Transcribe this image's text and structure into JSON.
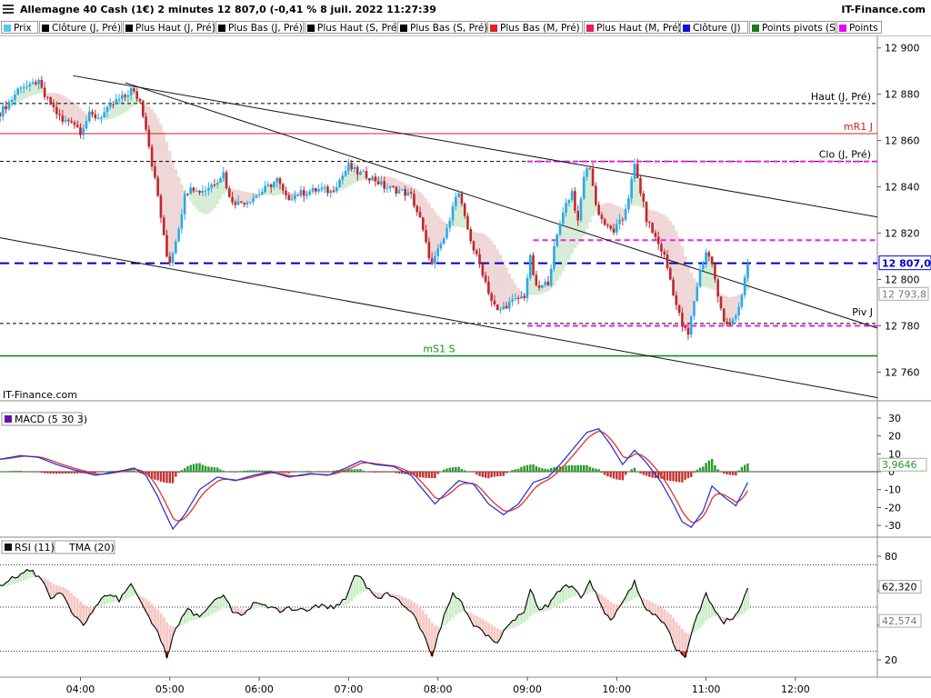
{
  "header": {
    "title": "Allemagne 40 Cash (1€) 2 minutes 12 807,0 (-0,41 % 8 juil. 2022 11:27:39",
    "brand": "IT-Finance.com"
  },
  "legend": [
    {
      "label": "Prix",
      "color": "#55c8e8"
    },
    {
      "label": "Clôture (J, Pré)",
      "color": "#000000"
    },
    {
      "label": "Plus Haut (J, Pré)",
      "color": "#000000"
    },
    {
      "label": "Plus Bas (J, Pré)",
      "color": "#000000"
    },
    {
      "label": "Plus Haut (S, Pré)",
      "color": "#000000"
    },
    {
      "label": "Plus Bas (S, Pré)",
      "color": "#000000"
    },
    {
      "label": "Plus Bas (M, Pré)",
      "color": "#e02020"
    },
    {
      "label": "Plus Haut (M, Pré)",
      "color": "#e02050"
    },
    {
      "label": "Clôture (J)",
      "color": "#1010e0"
    },
    {
      "label": "Points pivots (S)",
      "color": "#1a7a1a"
    },
    {
      "label": "Points",
      "color": "#ee00ee"
    }
  ],
  "watermark": "IT-Finance.com",
  "colors": {
    "up": "#2aa9e8",
    "down": "#c0282e",
    "close_line": "#0000cc",
    "pivot_green": "#1a8a1a",
    "magenta": "#ee22ee",
    "red_line": "#d02020"
  },
  "chart_data": [
    {
      "type": "candlestick",
      "panel": "price",
      "ylim": [
        12748,
        12905
      ],
      "y_ticks": [
        12900,
        12880,
        12860,
        12840,
        12820,
        12800,
        12780,
        12760
      ],
      "y_tick_labels": [
        "12 900",
        "12 880",
        "12 860",
        "12 840",
        "12 820",
        "12 800",
        "12 780",
        "12 760"
      ],
      "x_ticks": [
        "04:00",
        "05:00",
        "06:00",
        "07:00",
        "08:00",
        "09:00",
        "10:00",
        "11:00",
        "12:00"
      ],
      "x_tick_times": [
        "04:00",
        "05:00",
        "06:00",
        "07:00",
        "08:00",
        "09:00",
        "10:00",
        "11:00",
        "12:00"
      ],
      "x_range": [
        "03:06",
        "12:55"
      ],
      "close_path": [
        [
          "03:06",
          12872
        ],
        [
          "03:14",
          12878
        ],
        [
          "03:20",
          12884
        ],
        [
          "03:26",
          12883
        ],
        [
          "03:31",
          12886
        ],
        [
          "03:36",
          12879
        ],
        [
          "03:42",
          12874
        ],
        [
          "03:48",
          12868
        ],
        [
          "03:54",
          12869
        ],
        [
          "04:00",
          12864
        ],
        [
          "04:06",
          12871
        ],
        [
          "04:12",
          12870
        ],
        [
          "04:18",
          12873
        ],
        [
          "04:24",
          12877
        ],
        [
          "04:30",
          12879
        ],
        [
          "04:34",
          12882
        ],
        [
          "04:40",
          12877
        ],
        [
          "04:44",
          12866
        ],
        [
          "04:48",
          12850
        ],
        [
          "04:52",
          12836
        ],
        [
          "04:56",
          12818
        ],
        [
          "04:59",
          12806
        ],
        [
          "05:02",
          12812
        ],
        [
          "05:06",
          12823
        ],
        [
          "05:10",
          12836
        ],
        [
          "05:14",
          12841
        ],
        [
          "05:18",
          12838
        ],
        [
          "05:24",
          12839
        ],
        [
          "05:30",
          12842
        ],
        [
          "05:36",
          12846
        ],
        [
          "05:40",
          12835
        ],
        [
          "05:46",
          12833
        ],
        [
          "05:52",
          12834
        ],
        [
          "06:00",
          12837
        ],
        [
          "06:06",
          12840
        ],
        [
          "06:12",
          12843
        ],
        [
          "06:18",
          12835
        ],
        [
          "06:26",
          12837
        ],
        [
          "06:34",
          12838
        ],
        [
          "06:42",
          12839
        ],
        [
          "06:48",
          12838
        ],
        [
          "06:54",
          12843
        ],
        [
          "07:00",
          12849
        ],
        [
          "07:06",
          12846
        ],
        [
          "07:12",
          12845
        ],
        [
          "07:18",
          12843
        ],
        [
          "07:24",
          12840
        ],
        [
          "07:30",
          12839
        ],
        [
          "07:36",
          12838
        ],
        [
          "07:42",
          12836
        ],
        [
          "07:48",
          12826
        ],
        [
          "07:52",
          12815
        ],
        [
          "07:56",
          12806
        ],
        [
          "08:00",
          12812
        ],
        [
          "08:06",
          12821
        ],
        [
          "08:10",
          12833
        ],
        [
          "08:14",
          12837
        ],
        [
          "08:18",
          12826
        ],
        [
          "08:24",
          12813
        ],
        [
          "08:30",
          12803
        ],
        [
          "08:36",
          12791
        ],
        [
          "08:40",
          12786
        ],
        [
          "08:46",
          12789
        ],
        [
          "08:52",
          12791
        ],
        [
          "08:58",
          12793
        ],
        [
          "09:02",
          12809
        ],
        [
          "09:06",
          12796
        ],
        [
          "09:10",
          12797
        ],
        [
          "09:14",
          12799
        ],
        [
          "09:18",
          12813
        ],
        [
          "09:24",
          12830
        ],
        [
          "09:30",
          12838
        ],
        [
          "09:34",
          12824
        ],
        [
          "09:38",
          12845
        ],
        [
          "09:42",
          12849
        ],
        [
          "09:46",
          12832
        ],
        [
          "09:50",
          12826
        ],
        [
          "09:54",
          12822
        ],
        [
          "09:58",
          12821
        ],
        [
          "10:04",
          12826
        ],
        [
          "10:08",
          12836
        ],
        [
          "10:12",
          12849
        ],
        [
          "10:16",
          12838
        ],
        [
          "10:20",
          12826
        ],
        [
          "10:26",
          12818
        ],
        [
          "10:32",
          12810
        ],
        [
          "10:36",
          12800
        ],
        [
          "10:40",
          12789
        ],
        [
          "10:44",
          12780
        ],
        [
          "10:48",
          12776
        ],
        [
          "10:52",
          12791
        ],
        [
          "10:56",
          12804
        ],
        [
          "11:00",
          12812
        ],
        [
          "11:04",
          12807
        ],
        [
          "11:08",
          12792
        ],
        [
          "11:12",
          12783
        ],
        [
          "11:16",
          12781
        ],
        [
          "11:20",
          12783
        ],
        [
          "11:24",
          12793
        ],
        [
          "11:28",
          12807
        ]
      ],
      "h_lines": [
        {
          "name": "Haut (J, Pré)",
          "y": 12876,
          "style": "dash-black"
        },
        {
          "name": "mR1 J",
          "y": 12863,
          "style": "solid-red"
        },
        {
          "name": "Clo (J, Pré)",
          "y": 12851,
          "style": "dash-black"
        },
        {
          "name": "Piv J",
          "y": 12781,
          "style": "dash-black"
        },
        {
          "name": "mS1 S",
          "y": 12767,
          "style": "solid-green"
        },
        {
          "name": "Clôture (J)",
          "y": 12807,
          "style": "dash-blue"
        },
        {
          "name": "magenta-1",
          "y": 12851,
          "style": "dash-magenta",
          "from": "09:00"
        },
        {
          "name": "magenta-2",
          "y": 12817,
          "style": "dash-magenta",
          "from": "09:04"
        },
        {
          "name": "magenta-3",
          "y": 12780,
          "style": "dash-magenta",
          "from": "09:00"
        }
      ],
      "trend_lines": [
        {
          "from": [
            "03:55",
            12888
          ],
          "to": [
            "12:55",
            12827
          ]
        },
        {
          "from": [
            "04:30",
            12885
          ],
          "to": [
            "12:55",
            12779
          ]
        },
        {
          "from": [
            "03:06",
            12818
          ],
          "to": [
            "12:55",
            12749
          ]
        }
      ],
      "labels": [
        {
          "text": "Haut (J, Pré)",
          "y": 12876
        },
        {
          "text": "mR1 J",
          "y": 12863
        },
        {
          "text": "Clo (J, Pré)",
          "y": 12851
        },
        {
          "text": "Piv J",
          "y": 12783
        },
        {
          "text": "mS1 S",
          "y": 12767
        }
      ],
      "last_value": 12807.0,
      "last_value_label": "12 807,0",
      "secondary_value_label": "12 793,8",
      "secondary_value": 12793.8
    },
    {
      "type": "line",
      "panel": "macd",
      "title": "MACD (5 30 3)",
      "ylim": [
        -36,
        34
      ],
      "y_ticks": [
        30,
        20,
        10,
        0,
        -10,
        -20,
        -30
      ],
      "y_tick_labels": [
        "30",
        "20",
        "10",
        "0",
        "-10",
        "-20",
        "-30"
      ],
      "series_path": [
        [
          "03:06",
          7
        ],
        [
          "03:20",
          9
        ],
        [
          "03:32",
          8
        ],
        [
          "03:44",
          4
        ],
        [
          "03:56",
          1
        ],
        [
          "04:10",
          -2
        ],
        [
          "04:24",
          0
        ],
        [
          "04:36",
          2
        ],
        [
          "04:44",
          -2
        ],
        [
          "04:52",
          -14
        ],
        [
          "04:58",
          -25
        ],
        [
          "05:02",
          -32
        ],
        [
          "05:10",
          -24
        ],
        [
          "05:20",
          -10
        ],
        [
          "05:32",
          -3
        ],
        [
          "05:44",
          -5
        ],
        [
          "05:56",
          -2
        ],
        [
          "06:08",
          0
        ],
        [
          "06:20",
          -3
        ],
        [
          "06:34",
          -1
        ],
        [
          "06:46",
          -2
        ],
        [
          "06:58",
          2
        ],
        [
          "07:08",
          6
        ],
        [
          "07:18",
          4
        ],
        [
          "07:30",
          3
        ],
        [
          "07:42",
          -2
        ],
        [
          "07:52",
          -12
        ],
        [
          "07:58",
          -18
        ],
        [
          "08:04",
          -13
        ],
        [
          "08:14",
          -5
        ],
        [
          "08:24",
          -7
        ],
        [
          "08:34",
          -18
        ],
        [
          "08:44",
          -24
        ],
        [
          "08:54",
          -18
        ],
        [
          "09:04",
          -6
        ],
        [
          "09:14",
          -3
        ],
        [
          "09:22",
          4
        ],
        [
          "09:30",
          12
        ],
        [
          "09:40",
          22
        ],
        [
          "09:48",
          24
        ],
        [
          "09:56",
          15
        ],
        [
          "10:04",
          4
        ],
        [
          "10:12",
          12
        ],
        [
          "10:20",
          5
        ],
        [
          "10:30",
          -6
        ],
        [
          "10:38",
          -18
        ],
        [
          "10:44",
          -28
        ],
        [
          "10:50",
          -31
        ],
        [
          "10:58",
          -22
        ],
        [
          "11:04",
          -8
        ],
        [
          "11:12",
          -14
        ],
        [
          "11:20",
          -19
        ],
        [
          "11:28",
          -6
        ]
      ],
      "current_label": "3,9646",
      "current_value": 3.9646
    },
    {
      "type": "line",
      "panel": "rsi",
      "title": "RSI (11)",
      "title2": "TMA (20)",
      "ylim": [
        10,
        90
      ],
      "y_ticks": [
        80,
        60,
        40,
        20
      ],
      "y_tick_labels": [
        "80",
        "",
        "",
        "20"
      ],
      "series_path": [
        [
          "03:06",
          62
        ],
        [
          "03:16",
          68
        ],
        [
          "03:26",
          72
        ],
        [
          "03:34",
          66
        ],
        [
          "03:40",
          55
        ],
        [
          "03:46",
          60
        ],
        [
          "03:54",
          48
        ],
        [
          "04:02",
          40
        ],
        [
          "04:10",
          50
        ],
        [
          "04:18",
          58
        ],
        [
          "04:26",
          55
        ],
        [
          "04:34",
          64
        ],
        [
          "04:40",
          55
        ],
        [
          "04:46",
          45
        ],
        [
          "04:52",
          35
        ],
        [
          "04:58",
          22
        ],
        [
          "05:04",
          38
        ],
        [
          "05:12",
          50
        ],
        [
          "05:20",
          44
        ],
        [
          "05:28",
          52
        ],
        [
          "05:36",
          58
        ],
        [
          "05:42",
          48
        ],
        [
          "05:50",
          46
        ],
        [
          "05:58",
          54
        ],
        [
          "06:06",
          50
        ],
        [
          "06:14",
          48
        ],
        [
          "06:22",
          50
        ],
        [
          "06:32",
          49
        ],
        [
          "06:42",
          52
        ],
        [
          "06:50",
          50
        ],
        [
          "06:58",
          55
        ],
        [
          "07:04",
          70
        ],
        [
          "07:10",
          65
        ],
        [
          "07:18",
          56
        ],
        [
          "07:26",
          58
        ],
        [
          "07:34",
          54
        ],
        [
          "07:42",
          48
        ],
        [
          "07:50",
          35
        ],
        [
          "07:56",
          22
        ],
        [
          "08:02",
          40
        ],
        [
          "08:10",
          58
        ],
        [
          "08:16",
          52
        ],
        [
          "08:24",
          40
        ],
        [
          "08:32",
          34
        ],
        [
          "08:40",
          30
        ],
        [
          "08:48",
          42
        ],
        [
          "08:58",
          48
        ],
        [
          "09:02",
          62
        ],
        [
          "09:08",
          48
        ],
        [
          "09:14",
          52
        ],
        [
          "09:22",
          60
        ],
        [
          "09:30",
          64
        ],
        [
          "09:36",
          56
        ],
        [
          "09:42",
          66
        ],
        [
          "09:50",
          50
        ],
        [
          "09:56",
          42
        ],
        [
          "10:04",
          54
        ],
        [
          "10:12",
          65
        ],
        [
          "10:18",
          52
        ],
        [
          "10:26",
          45
        ],
        [
          "10:34",
          38
        ],
        [
          "10:40",
          26
        ],
        [
          "10:46",
          22
        ],
        [
          "10:52",
          40
        ],
        [
          "11:00",
          58
        ],
        [
          "11:06",
          48
        ],
        [
          "11:12",
          42
        ],
        [
          "11:20",
          45
        ],
        [
          "11:28",
          62
        ]
      ],
      "levels": [
        75,
        50.5,
        25
      ],
      "current_label": "62,320",
      "current_value": 62.32,
      "tma_label": "42,574",
      "tma_value": 42.574
    }
  ]
}
